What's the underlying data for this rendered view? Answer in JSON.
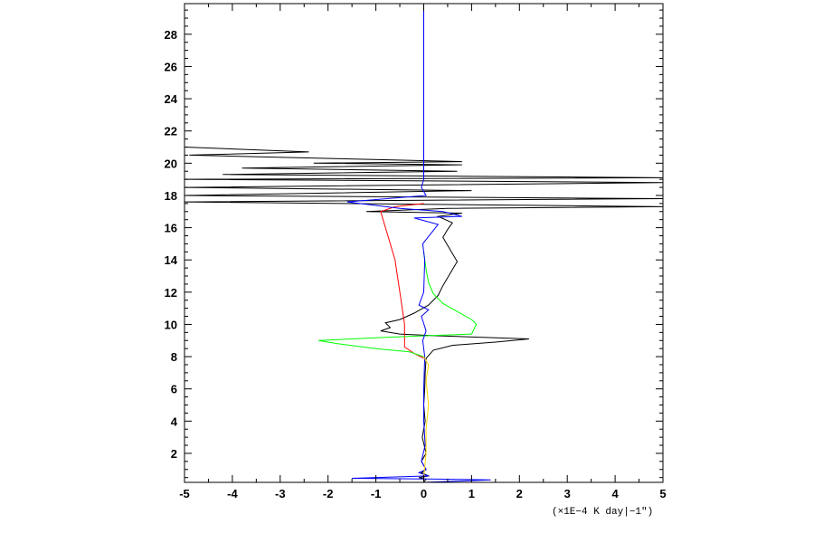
{
  "chart_data": {
    "type": "line",
    "title": "",
    "xlabel": "",
    "ylabel": "",
    "x_unit_label": "(×1E−4 K day|−1\")",
    "xlim": [
      -5,
      5
    ],
    "ylim": [
      0.2,
      29.9
    ],
    "x_ticks": [
      "-5",
      "-4",
      "-3",
      "-2",
      "-1",
      "0",
      "1",
      "2",
      "3",
      "4",
      "5"
    ],
    "y_ticks": [
      "2",
      "4",
      "6",
      "8",
      "10",
      "12",
      "14",
      "16",
      "18",
      "20",
      "22",
      "24",
      "26",
      "28"
    ],
    "grid": false,
    "legend": "none",
    "series": [
      {
        "color": "#000000",
        "points": [
          [
            0,
            0.2
          ],
          [
            0.05,
            0.4
          ],
          [
            -0.1,
            0.5
          ],
          [
            0.1,
            0.6
          ],
          [
            -0.05,
            0.8
          ],
          [
            0.05,
            1.0
          ],
          [
            -0.05,
            1.5
          ],
          [
            0.05,
            2.0
          ],
          [
            -0.03,
            3.0
          ],
          [
            0.03,
            4.0
          ],
          [
            0,
            5.0
          ],
          [
            0.02,
            6.0
          ],
          [
            0.03,
            7.0
          ],
          [
            0.05,
            7.9
          ],
          [
            0.2,
            8.4
          ],
          [
            0.6,
            8.7
          ],
          [
            1.5,
            8.9
          ],
          [
            2.2,
            9.1
          ],
          [
            0.2,
            9.3
          ],
          [
            -0.5,
            9.4
          ],
          [
            -0.9,
            9.6
          ],
          [
            -0.7,
            9.8
          ],
          [
            -0.8,
            10.1
          ],
          [
            -0.5,
            10.3
          ],
          [
            -0.2,
            10.7
          ],
          [
            0.1,
            11.2
          ],
          [
            0.3,
            11.8
          ],
          [
            0.4,
            12.4
          ],
          [
            0.5,
            12.9
          ],
          [
            0.6,
            13.4
          ],
          [
            0.7,
            13.9
          ],
          [
            0.6,
            14.4
          ],
          [
            0.5,
            14.9
          ],
          [
            0.4,
            15.4
          ],
          [
            0.5,
            15.9
          ],
          [
            0.6,
            16.3
          ],
          [
            0.3,
            16.7
          ],
          [
            0.8,
            16.9
          ],
          [
            -1.2,
            17.0
          ],
          [
            0.5,
            17.2
          ],
          [
            5.0,
            17.3
          ],
          [
            -5.0,
            17.6
          ],
          [
            5.0,
            17.8
          ],
          [
            -5.0,
            18.0
          ],
          [
            1.0,
            18.3
          ],
          [
            -5.0,
            18.5
          ],
          [
            5.0,
            18.8
          ],
          [
            -5.0,
            19.0
          ],
          [
            5.0,
            19.1
          ],
          [
            -4.2,
            19.3
          ],
          [
            0.7,
            19.5
          ],
          [
            -3.8,
            19.7
          ],
          [
            0.8,
            19.9
          ],
          [
            -2.3,
            20.0
          ],
          [
            0.8,
            20.1
          ],
          [
            -4.9,
            20.5
          ],
          [
            -2.4,
            20.7
          ],
          [
            -5.0,
            21.0
          ]
        ]
      },
      {
        "color": "#ff0000",
        "points": [
          [
            0,
            7.9
          ],
          [
            -0.2,
            8.2
          ],
          [
            -0.4,
            8.6
          ],
          [
            -0.4,
            9.0
          ],
          [
            -0.4,
            9.3
          ],
          [
            -0.4,
            9.6
          ],
          [
            -0.4,
            10.0
          ],
          [
            -0.45,
            11.0
          ],
          [
            -0.5,
            12.0
          ],
          [
            -0.55,
            13.0
          ],
          [
            -0.6,
            14.0
          ],
          [
            -0.7,
            15.0
          ],
          [
            -0.8,
            16.0
          ],
          [
            -0.9,
            17.0
          ],
          [
            -0.6,
            17.3
          ],
          [
            0,
            17.5
          ]
        ]
      },
      {
        "color": "#00ff00",
        "points": [
          [
            0,
            8.0
          ],
          [
            -0.3,
            8.3
          ],
          [
            -1.0,
            8.5
          ],
          [
            -1.8,
            8.8
          ],
          [
            -2.2,
            9.0
          ],
          [
            -0.8,
            9.2
          ],
          [
            0.1,
            9.3
          ],
          [
            1.0,
            9.4
          ],
          [
            1.1,
            10.0
          ],
          [
            1.0,
            10.3
          ],
          [
            0.7,
            10.8
          ],
          [
            0.4,
            11.3
          ],
          [
            0.2,
            11.9
          ],
          [
            0.1,
            12.6
          ],
          [
            0.05,
            13.4
          ],
          [
            0.02,
            14.0
          ],
          [
            0,
            14.5
          ]
        ]
      },
      {
        "color": "#0000ff",
        "points": [
          [
            0,
            0.2
          ],
          [
            1.4,
            0.35
          ],
          [
            0.3,
            0.4
          ],
          [
            -1.5,
            0.45
          ],
          [
            0.1,
            0.6
          ],
          [
            -0.1,
            0.8
          ],
          [
            0.05,
            1.0
          ],
          [
            -0.05,
            1.5
          ],
          [
            0.03,
            2.5
          ],
          [
            0,
            4.0
          ],
          [
            0,
            6.0
          ],
          [
            0.02,
            8.0
          ],
          [
            -0.02,
            9.0
          ],
          [
            0.05,
            9.6
          ],
          [
            -0.05,
            10.5
          ],
          [
            0.1,
            10.9
          ],
          [
            -0.1,
            11.2
          ],
          [
            0,
            12.0
          ],
          [
            0.02,
            14.0
          ],
          [
            -0.02,
            15.0
          ],
          [
            0.3,
            16.2
          ],
          [
            -0.2,
            16.6
          ],
          [
            0.8,
            16.7
          ],
          [
            0.4,
            17.0
          ],
          [
            -0.5,
            17.2
          ],
          [
            -1.6,
            17.6
          ],
          [
            0.05,
            18.0
          ],
          [
            -0.05,
            18.5
          ],
          [
            0,
            19.0
          ],
          [
            0,
            29.9
          ]
        ]
      },
      {
        "color": "#ffd700",
        "points": [
          [
            0,
            0.5
          ],
          [
            0.05,
            2.0
          ],
          [
            0.05,
            3.5
          ],
          [
            0.1,
            5.0
          ],
          [
            0.05,
            6.5
          ],
          [
            0.1,
            7.5
          ],
          [
            0,
            8.0
          ]
        ]
      }
    ]
  }
}
